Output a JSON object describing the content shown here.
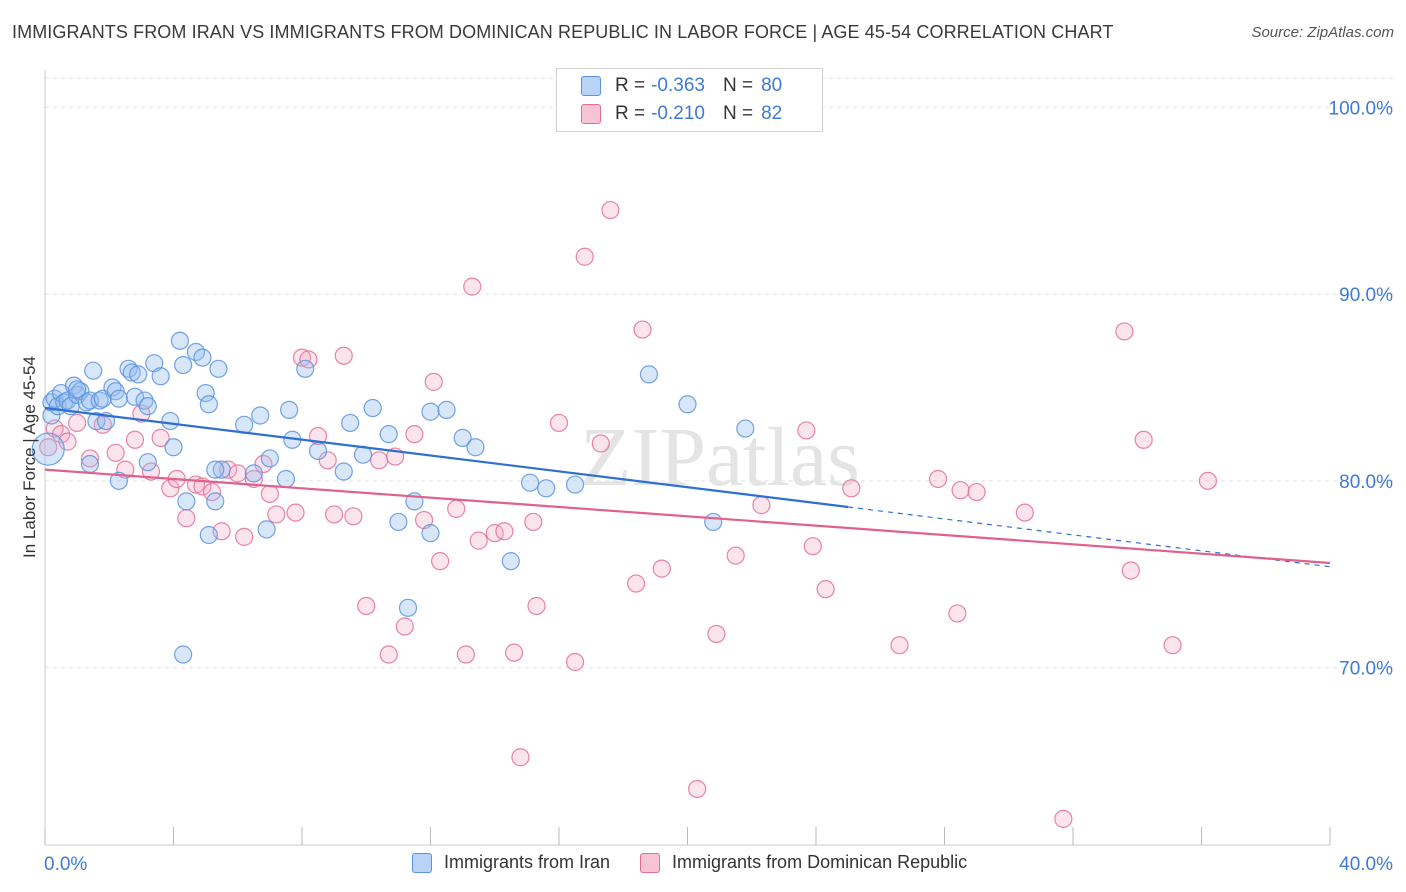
{
  "title": "IMMIGRANTS FROM IRAN VS IMMIGRANTS FROM DOMINICAN REPUBLIC IN LABOR FORCE | AGE 45-54 CORRELATION CHART",
  "source": "Source: ZipAtlas.com",
  "watermark": "ZIPatlas",
  "legend": {
    "r_label": "R =",
    "n_label": "N =",
    "series": [
      {
        "name": "Immigrants from Iran",
        "r": "-0.363",
        "n": "80",
        "color": "#5b93e0",
        "fill": "#b9d2f5"
      },
      {
        "name": "Immigrants from Dominican Republic",
        "r": "-0.210",
        "n": "82",
        "color": "#e46e98",
        "fill": "#f7c4d4"
      }
    ]
  },
  "chart_data": {
    "type": "scatter",
    "title": "IMMIGRANTS FROM IRAN VS IMMIGRANTS FROM DOMINICAN REPUBLIC IN LABOR FORCE | AGE 45-54 CORRELATION CHART",
    "xlabel": "",
    "ylabel": "In Labor Force | Age 45-54",
    "xlim": [
      0,
      40
    ],
    "ylim": [
      60.5,
      102
    ],
    "x_tick_labels": [
      "0.0%",
      "40.0%"
    ],
    "y_ticks": [
      70,
      80,
      90,
      100
    ],
    "y_tick_labels": [
      "70.0%",
      "80.0%",
      "90.0%",
      "100.0%"
    ],
    "grid": true,
    "legend_position": "top-center",
    "series": [
      {
        "name": "Immigrants from Iran",
        "color": "#5b93e0",
        "trend": {
          "x": [
            0,
            25
          ],
          "y": [
            83.9,
            78.6
          ],
          "dashed_to": [
            40,
            75.4
          ]
        },
        "points": [
          [
            0.1,
            81.7
          ],
          [
            0.2,
            83.5
          ],
          [
            0.2,
            84.2
          ],
          [
            0.3,
            84.4
          ],
          [
            0.4,
            84.0
          ],
          [
            0.5,
            84.7
          ],
          [
            0.6,
            84.2
          ],
          [
            0.7,
            84.3
          ],
          [
            0.8,
            84.0
          ],
          [
            0.9,
            85.1
          ],
          [
            1.0,
            84.6
          ],
          [
            1.1,
            84.8
          ],
          [
            1.3,
            84.2
          ],
          [
            1.4,
            84.3
          ],
          [
            1.5,
            85.9
          ],
          [
            1.6,
            83.2
          ],
          [
            1.7,
            84.3
          ],
          [
            1.8,
            84.4
          ],
          [
            2.1,
            85.0
          ],
          [
            2.2,
            84.8
          ],
          [
            2.3,
            84.4
          ],
          [
            2.6,
            86.0
          ],
          [
            2.7,
            85.8
          ],
          [
            2.8,
            84.5
          ],
          [
            2.9,
            85.7
          ],
          [
            3.1,
            84.3
          ],
          [
            3.2,
            84.0
          ],
          [
            3.4,
            86.3
          ],
          [
            3.6,
            85.6
          ],
          [
            3.9,
            83.2
          ],
          [
            4.0,
            81.8
          ],
          [
            4.2,
            87.5
          ],
          [
            4.3,
            86.2
          ],
          [
            4.7,
            86.9
          ],
          [
            4.9,
            86.6
          ],
          [
            5.0,
            84.7
          ],
          [
            5.1,
            84.1
          ],
          [
            5.4,
            86.0
          ],
          [
            5.3,
            78.9
          ],
          [
            5.5,
            80.6
          ],
          [
            5.1,
            77.1
          ],
          [
            6.2,
            83.0
          ],
          [
            6.7,
            83.5
          ],
          [
            6.9,
            77.4
          ],
          [
            7.0,
            81.2
          ],
          [
            7.5,
            80.1
          ],
          [
            7.6,
            83.8
          ],
          [
            7.7,
            82.2
          ],
          [
            8.1,
            86.0
          ],
          [
            8.5,
            81.6
          ],
          [
            9.3,
            80.5
          ],
          [
            9.5,
            83.1
          ],
          [
            9.9,
            81.4
          ],
          [
            10.2,
            83.9
          ],
          [
            10.7,
            82.5
          ],
          [
            11.0,
            77.8
          ],
          [
            11.3,
            73.2
          ],
          [
            11.5,
            78.9
          ],
          [
            12.0,
            83.7
          ],
          [
            12.5,
            83.8
          ],
          [
            13.0,
            82.3
          ],
          [
            13.4,
            81.8
          ],
          [
            14.5,
            75.7
          ],
          [
            15.1,
            79.9
          ],
          [
            15.6,
            79.6
          ],
          [
            16.5,
            79.8
          ],
          [
            18.8,
            85.7
          ],
          [
            20.0,
            84.1
          ],
          [
            20.8,
            77.8
          ],
          [
            21.8,
            82.8
          ],
          [
            4.3,
            70.7
          ],
          [
            4.4,
            78.9
          ],
          [
            3.2,
            81.0
          ],
          [
            2.3,
            80.0
          ],
          [
            1.4,
            80.9
          ],
          [
            1.0,
            84.9
          ],
          [
            1.9,
            83.2
          ],
          [
            5.3,
            80.6
          ],
          [
            6.5,
            80.4
          ],
          [
            12.0,
            77.2
          ]
        ]
      },
      {
        "name": "Immigrants from Dominican Republic",
        "color": "#e46e98",
        "trend": {
          "x": [
            0,
            40
          ],
          "y": [
            80.6,
            75.6
          ]
        },
        "points": [
          [
            0.1,
            81.8
          ],
          [
            0.3,
            82.8
          ],
          [
            0.5,
            82.5
          ],
          [
            0.7,
            82.1
          ],
          [
            1.0,
            83.1
          ],
          [
            1.4,
            81.2
          ],
          [
            1.8,
            83.0
          ],
          [
            2.2,
            81.5
          ],
          [
            2.5,
            80.6
          ],
          [
            2.8,
            82.2
          ],
          [
            3.0,
            83.6
          ],
          [
            3.3,
            80.5
          ],
          [
            3.6,
            82.3
          ],
          [
            3.9,
            79.6
          ],
          [
            4.1,
            80.1
          ],
          [
            4.4,
            78.0
          ],
          [
            4.7,
            79.8
          ],
          [
            4.9,
            79.7
          ],
          [
            5.2,
            79.4
          ],
          [
            5.5,
            77.3
          ],
          [
            5.7,
            80.6
          ],
          [
            6.0,
            80.4
          ],
          [
            6.2,
            77.0
          ],
          [
            6.5,
            80.1
          ],
          [
            6.8,
            80.9
          ],
          [
            7.0,
            79.3
          ],
          [
            7.2,
            78.2
          ],
          [
            7.8,
            78.3
          ],
          [
            8.0,
            86.6
          ],
          [
            8.2,
            86.5
          ],
          [
            8.5,
            82.4
          ],
          [
            8.8,
            81.1
          ],
          [
            9.0,
            78.2
          ],
          [
            9.3,
            86.7
          ],
          [
            9.6,
            78.1
          ],
          [
            10.0,
            73.3
          ],
          [
            10.4,
            81.1
          ],
          [
            10.7,
            70.7
          ],
          [
            10.9,
            81.3
          ],
          [
            11.2,
            72.2
          ],
          [
            11.5,
            82.5
          ],
          [
            11.8,
            77.9
          ],
          [
            12.1,
            85.3
          ],
          [
            12.3,
            75.7
          ],
          [
            12.8,
            78.5
          ],
          [
            13.1,
            70.7
          ],
          [
            13.3,
            90.4
          ],
          [
            13.5,
            76.8
          ],
          [
            14.0,
            77.2
          ],
          [
            14.3,
            77.3
          ],
          [
            14.6,
            70.8
          ],
          [
            14.8,
            65.2
          ],
          [
            15.2,
            77.8
          ],
          [
            15.3,
            73.3
          ],
          [
            16.0,
            83.1
          ],
          [
            16.5,
            70.3
          ],
          [
            16.8,
            92.0
          ],
          [
            17.3,
            82.0
          ],
          [
            17.6,
            94.5
          ],
          [
            18.4,
            74.5
          ],
          [
            18.6,
            88.1
          ],
          [
            19.2,
            75.3
          ],
          [
            20.3,
            63.5
          ],
          [
            20.9,
            71.8
          ],
          [
            21.5,
            76.0
          ],
          [
            22.3,
            78.7
          ],
          [
            23.7,
            82.7
          ],
          [
            23.9,
            76.5
          ],
          [
            24.3,
            74.2
          ],
          [
            25.1,
            79.6
          ],
          [
            26.6,
            71.2
          ],
          [
            27.8,
            80.1
          ],
          [
            28.4,
            72.9
          ],
          [
            28.5,
            79.5
          ],
          [
            29.0,
            79.4
          ],
          [
            30.5,
            78.3
          ],
          [
            31.7,
            61.9
          ],
          [
            33.6,
            88.0
          ],
          [
            33.8,
            75.2
          ],
          [
            34.2,
            82.2
          ],
          [
            35.1,
            71.2
          ],
          [
            36.2,
            80.0
          ]
        ]
      }
    ]
  }
}
